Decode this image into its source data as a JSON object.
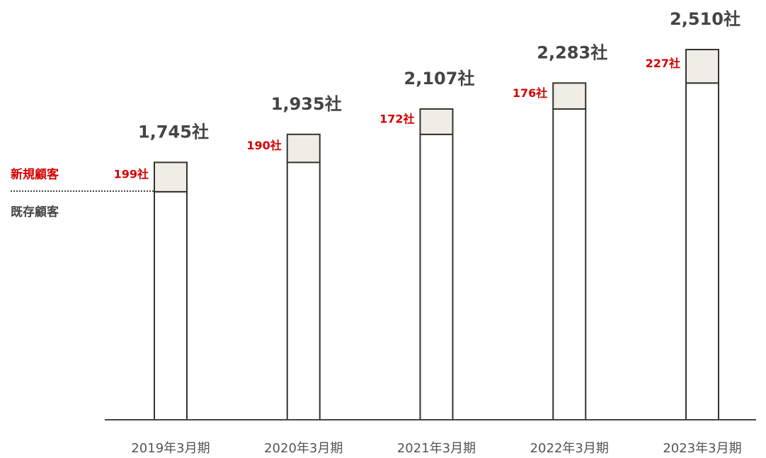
{
  "chart_data": {
    "type": "stacked_bar",
    "categories": [
      "2019年3月期",
      "2020年3月期",
      "2021年3月期",
      "2022年3月期",
      "2023年3月期"
    ],
    "series": [
      {
        "name": "既存顧客",
        "color": "#ffffff",
        "values": [
          1546,
          1745,
          1935,
          2107,
          2283
        ]
      },
      {
        "name": "新規顧客",
        "color": "#f0ede6",
        "values": [
          199,
          190,
          172,
          176,
          227
        ],
        "value_labels": [
          "199社",
          "190社",
          "172社",
          "176社",
          "227社"
        ]
      }
    ],
    "totals": [
      1745,
      1935,
      2107,
      2283,
      2510
    ],
    "total_labels": [
      "1,745社",
      "1,935社",
      "2,107社",
      "2,283社",
      "2,510社"
    ],
    "ylim": [
      0,
      2510
    ]
  }
}
